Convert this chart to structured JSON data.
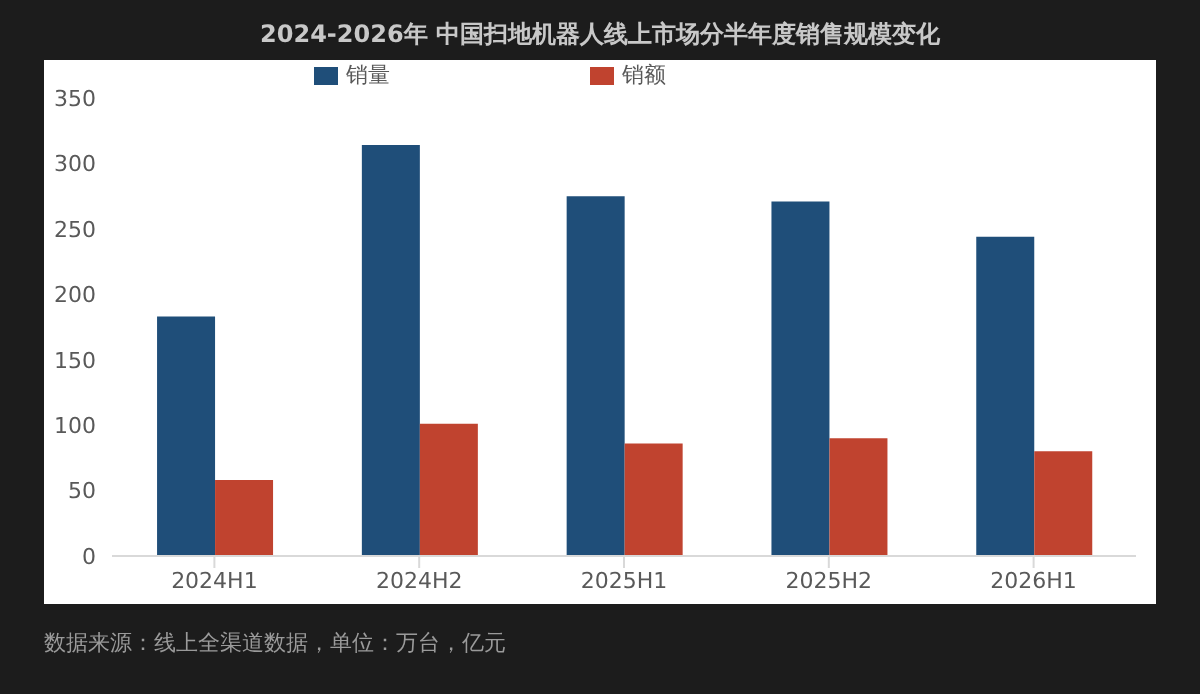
{
  "chart_data": {
    "type": "bar",
    "title": "2024-2026年 中国扫地机器人线上市场分半年度销售规模变化",
    "categories": [
      "2024H1",
      "2024H2",
      "2025H1",
      "2025H2",
      "2026H1"
    ],
    "series": [
      {
        "name": "销量",
        "color": "#1f4e79",
        "values": [
          183,
          314,
          275,
          271,
          244
        ]
      },
      {
        "name": "销额",
        "color": "#c0432f",
        "values": [
          58,
          101,
          86,
          90,
          80
        ]
      }
    ],
    "ylim": [
      0,
      350
    ],
    "yticks": [
      0,
      50,
      100,
      150,
      200,
      250,
      300,
      350
    ],
    "grid": false,
    "legend": "top",
    "annotations": [
      "数据来源：线上全渠道数据，单位：万台，亿元"
    ]
  }
}
